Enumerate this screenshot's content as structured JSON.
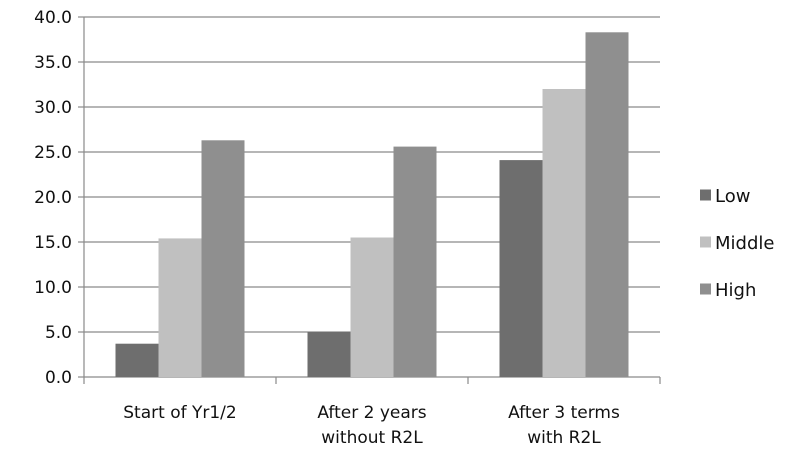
{
  "chart_data": {
    "type": "bar",
    "title": "",
    "xlabel": "",
    "ylabel": "",
    "categories": [
      [
        "Start of Yr1/2"
      ],
      [
        "After 2 years",
        "without R2L"
      ],
      [
        "After 3 terms",
        "with R2L"
      ]
    ],
    "series": [
      {
        "name": "Low",
        "color": "#6e6e6e",
        "values": [
          3.7,
          5.0,
          24.1
        ]
      },
      {
        "name": "Middle",
        "color": "#c0c0c0",
        "values": [
          15.4,
          15.5,
          32.0
        ]
      },
      {
        "name": "High",
        "color": "#8f8f8f",
        "values": [
          26.3,
          25.6,
          38.3
        ]
      }
    ],
    "ylim": [
      0,
      40
    ],
    "yticks": [
      "0.0",
      "5.0",
      "10.0",
      "15.0",
      "20.0",
      "25.0",
      "30.0",
      "35.0",
      "40.0"
    ],
    "grid": true,
    "legend_position": "right"
  }
}
